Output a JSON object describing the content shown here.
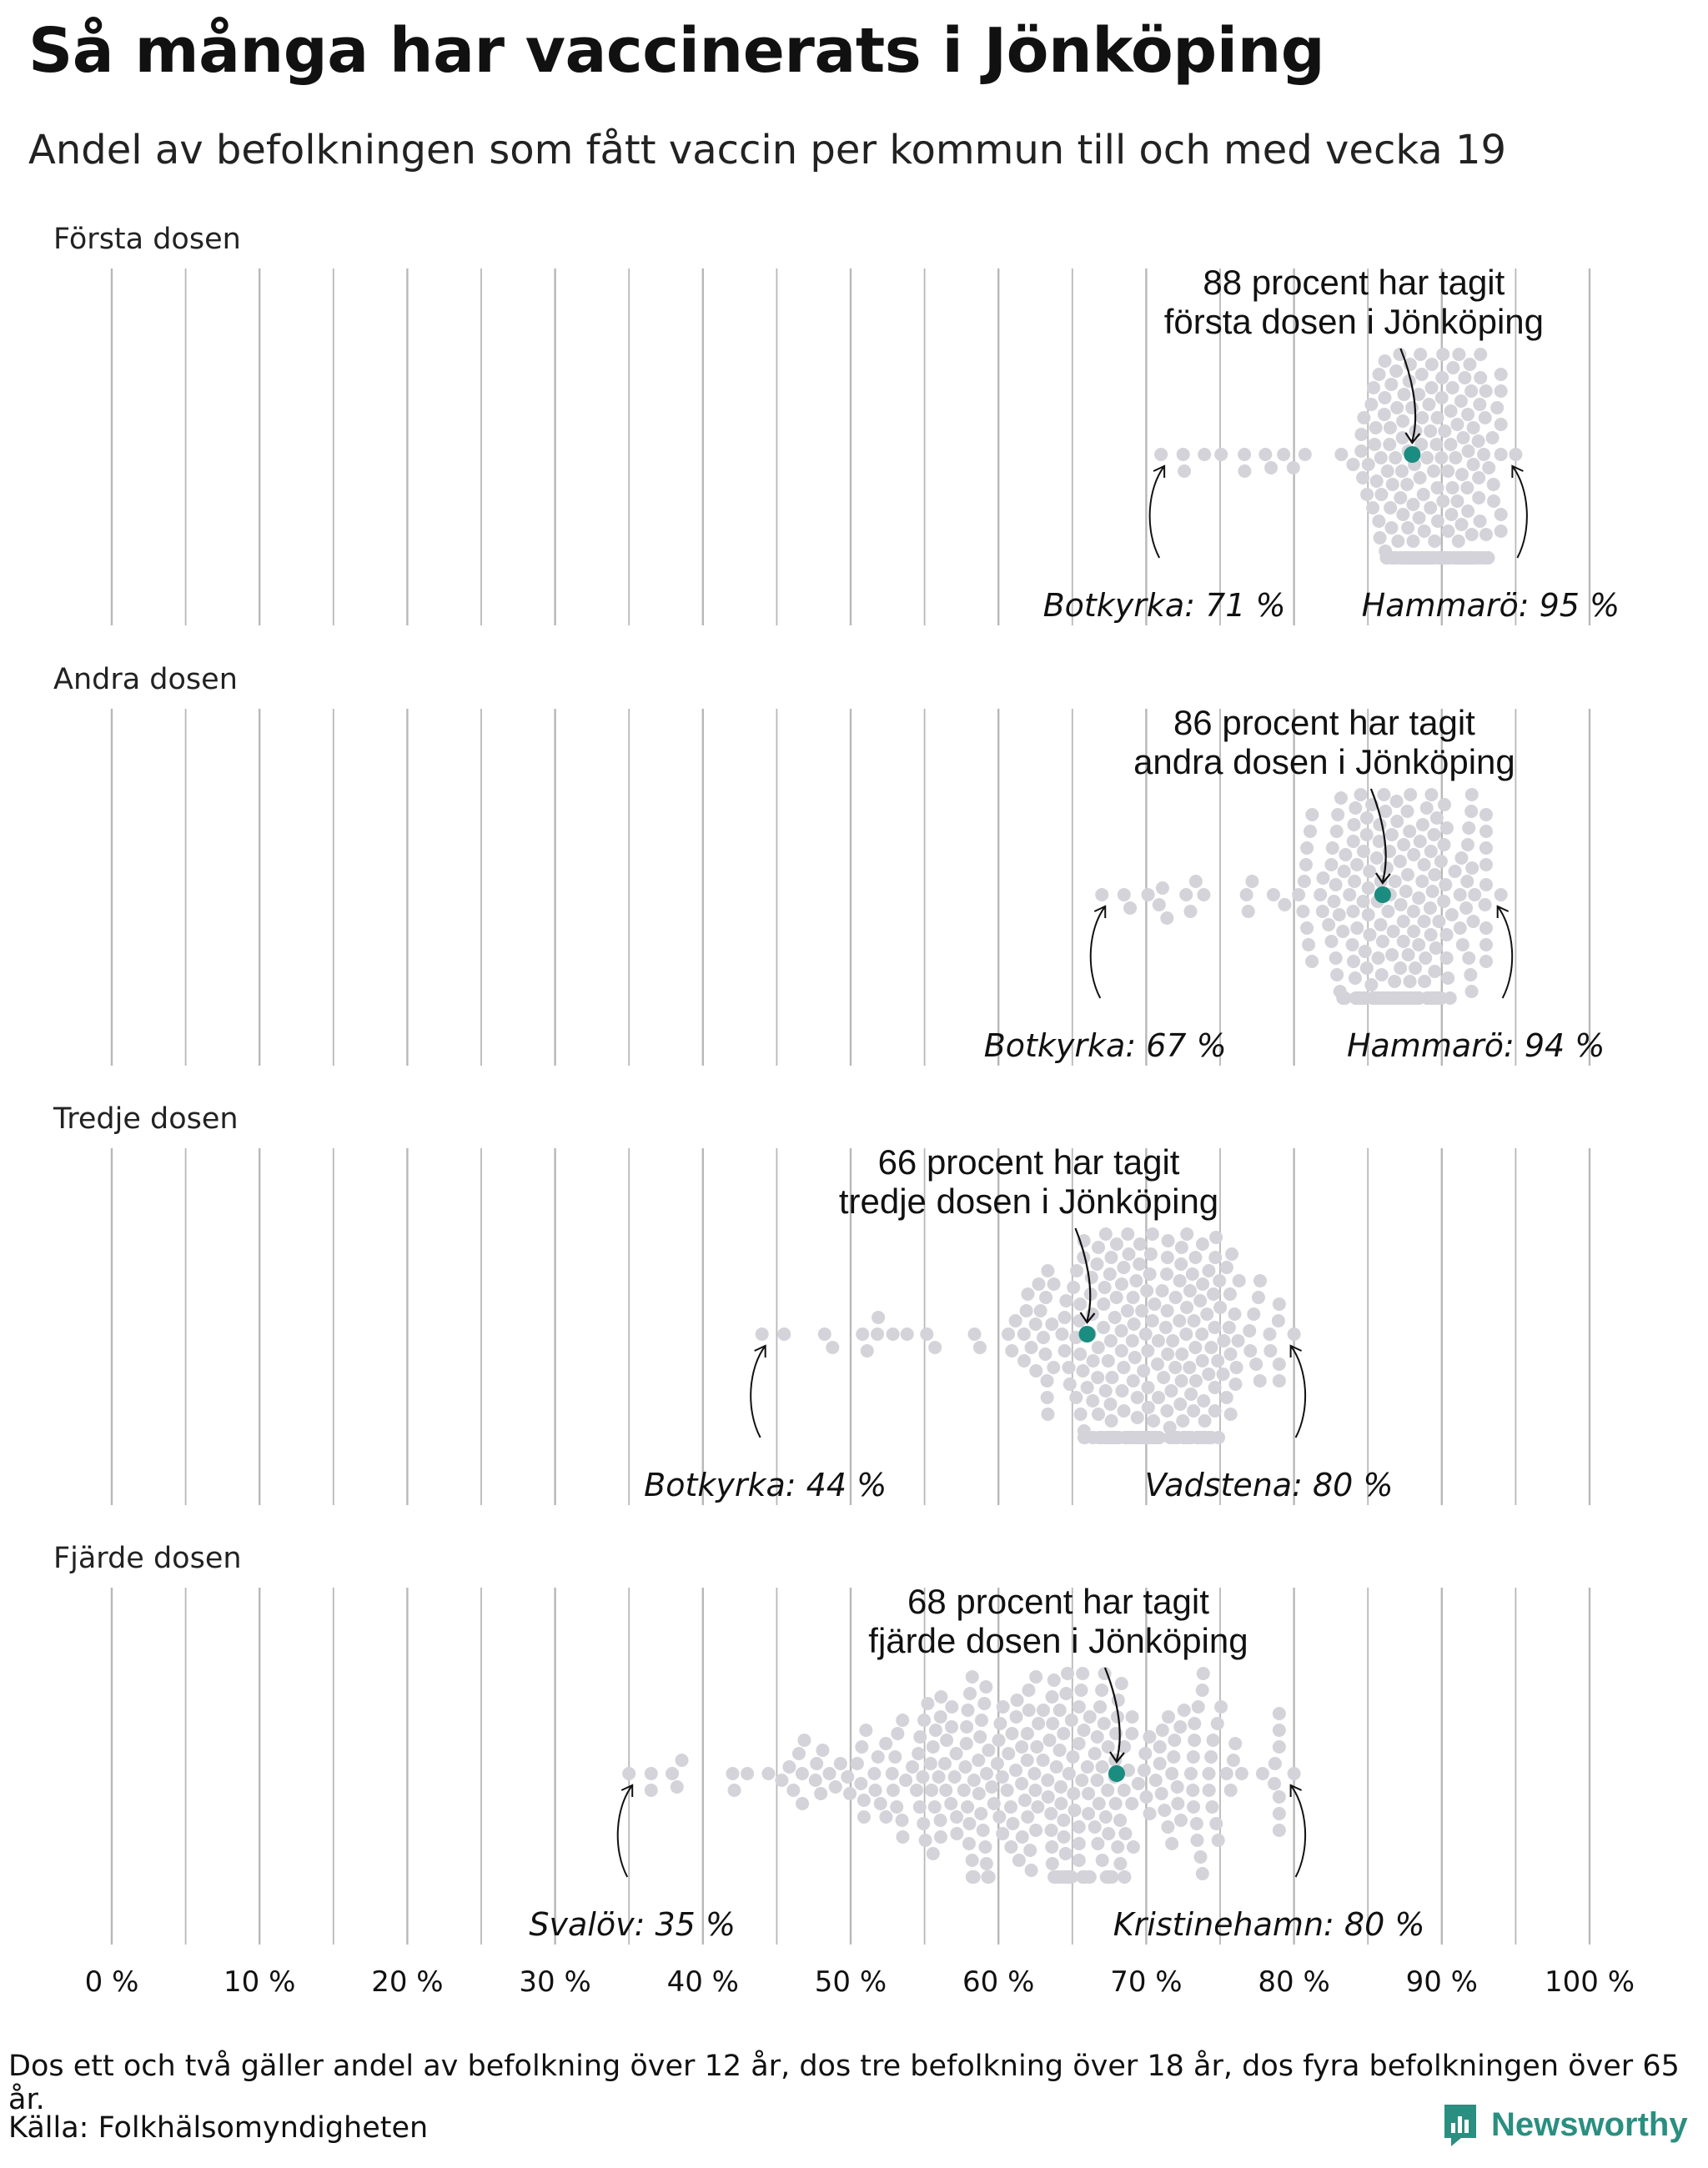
{
  "title": "Så många har vaccinerats i Jönköping",
  "subtitle": "Andel av befolkningen som fått vaccin per kommun till och med vecka 19",
  "footnote": "Dos ett och två gäller andel av befolkning över 12 år, dos tre befolkning över 18 år, dos fyra befolkningen över 65 år.",
  "source": "Källa: Folkhälsomyndigheten",
  "brand": "Newsworthy",
  "colors": {
    "highlight": "#1a8c80",
    "dots": "#d3d3d9",
    "grid": "#b8b8b8",
    "brand": "#2a8f80"
  },
  "chart_data": {
    "type": "scatter",
    "subtype": "beeswarm",
    "x_ticks": [
      "0 %",
      "10 %",
      "20 %",
      "30 %",
      "40 %",
      "50 %",
      "60 %",
      "70 %",
      "80 %",
      "90 %",
      "100 %"
    ],
    "xlim": [
      0,
      100
    ],
    "unit": "%",
    "panels": [
      {
        "label": "Första dosen",
        "highlight": {
          "name": "Jönköping",
          "value": 88,
          "line1": "88 procent har tagit",
          "line2": "första dosen i Jönköping"
        },
        "min": {
          "name": "Botkyrka",
          "value": 71,
          "label": "Botkyrka: 71 %"
        },
        "max": {
          "name": "Hammarö",
          "value": 95,
          "label": "Hammarö: 95 %"
        },
        "distribution": {
          "mean": 89.5,
          "sd": 2.4,
          "count": 290
        }
      },
      {
        "label": "Andra dosen",
        "highlight": {
          "name": "Jönköping",
          "value": 86,
          "line1": "86 procent har tagit",
          "line2": "andra dosen i Jönköping"
        },
        "min": {
          "name": "Botkyrka",
          "value": 67,
          "label": "Botkyrka: 67 %"
        },
        "max": {
          "name": "Hammarö",
          "value": 94,
          "label": "Hammarö: 94 %"
        },
        "distribution": {
          "mean": 87,
          "sd": 2.9,
          "count": 290
        }
      },
      {
        "label": "Tredje dosen",
        "highlight": {
          "name": "Jönköping",
          "value": 66,
          "line1": "66 procent har tagit",
          "line2": "tredje dosen i Jönköping"
        },
        "min": {
          "name": "Botkyrka",
          "value": 44,
          "label": "Botkyrka: 44 %"
        },
        "max": {
          "name": "Vadstena",
          "value": 80,
          "label": "Vadstena: 80 %"
        },
        "distribution": {
          "mean": 69.5,
          "sd": 4.2,
          "count": 290
        }
      },
      {
        "label": "Fjärde dosen",
        "highlight": {
          "name": "Jönköping",
          "value": 68,
          "line1": "68 procent har tagit",
          "line2": "fjärde dosen i Jönköping"
        },
        "min": {
          "name": "Svalöv",
          "value": 35,
          "label": "Svalöv: 35 %"
        },
        "max": {
          "name": "Kristinehamn",
          "value": 80,
          "label": "Kristinehamn: 80 %"
        },
        "distribution": {
          "mean": 63.5,
          "sd": 7.5,
          "count": 290
        }
      }
    ]
  }
}
